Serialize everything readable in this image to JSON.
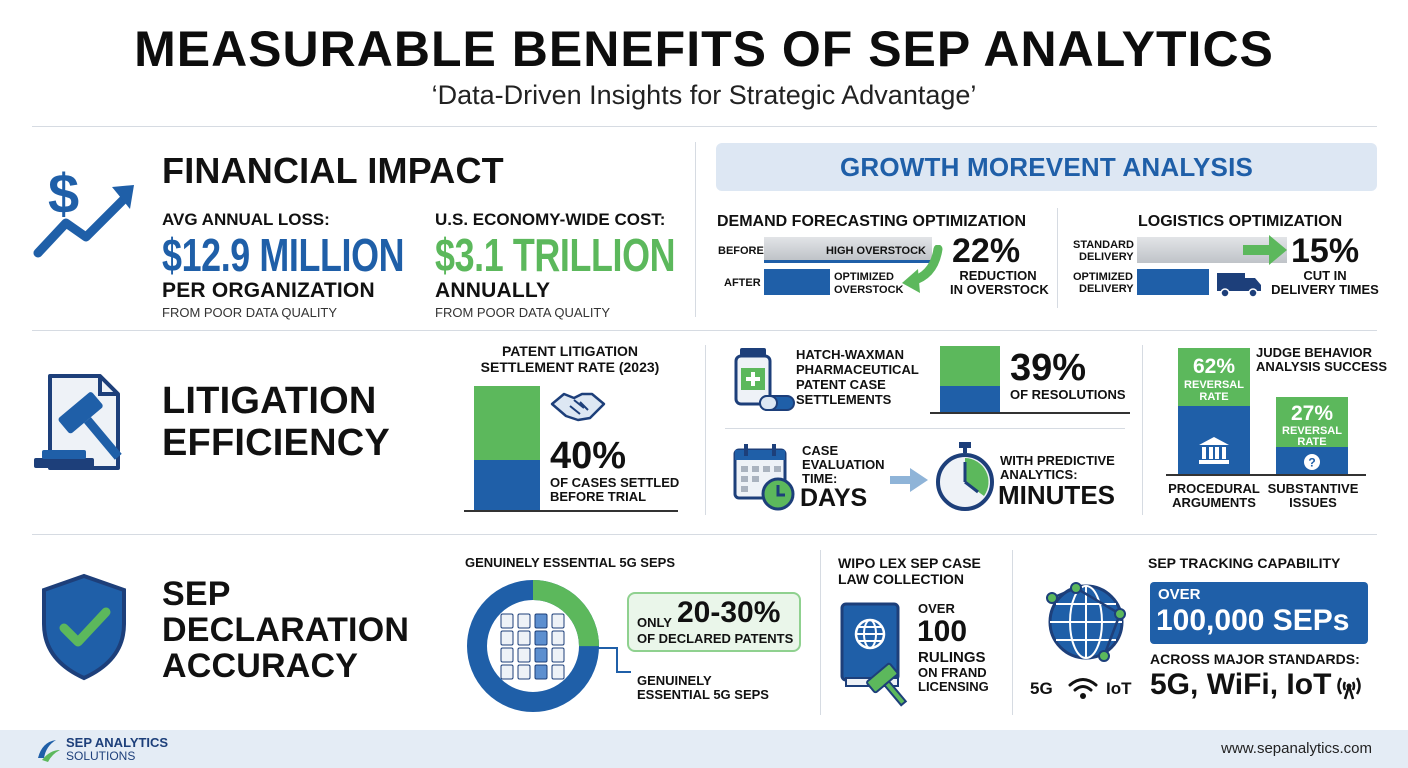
{
  "header": {
    "title": "MEASURABLE BENEFITS OF SEP ANALYTICS",
    "subtitle": "‘Data-Driven Insights for Strategic Advantage’"
  },
  "financial": {
    "heading": "FINANCIAL IMPACT",
    "loss_label": "AVG ANNUAL LOSS:",
    "loss_value": "$12.9 MILLION",
    "loss_sub": "PER ORGANIZATION",
    "loss_note": "FROM POOR DATA QUALITY",
    "cost_label": "U.S. ECONOMY-WIDE COST:",
    "cost_value": "$3.1 TRILLION",
    "cost_sub": "ANNUALLY",
    "cost_note": "FROM POOR DATA QUALITY"
  },
  "growth": {
    "banner": "GROWTH MOREVENT ANALYSIS",
    "demand": {
      "title": "DEMAND FORECASTING OPTIMIZATION",
      "before_label": "BEFORE",
      "before_bar": "HIGH OVERSTOCK",
      "after_label": "AFTER",
      "after_bar_1": "OPTIMIZED",
      "after_bar_2": "OVERSTOCK",
      "stat": "22%",
      "stat_line1": "REDUCTION",
      "stat_line2": "IN OVERSTOCK"
    },
    "logistics": {
      "title": "LOGISTICS OPTIMIZATION",
      "standard_1": "STANDARD",
      "standard_2": "DELIVERY",
      "optimized_1": "OPTIMIZED",
      "optimized_2": "DELIVERY",
      "stat": "15%",
      "stat_line1": "CUT IN",
      "stat_line2": "DELIVERY TIMES"
    }
  },
  "litigation": {
    "heading_1": "LITIGATION",
    "heading_2": "EFFICIENCY",
    "settlement": {
      "title_1": "PATENT LITIGATION",
      "title_2": "SETTLEMENT RATE (2023)",
      "value": "40%",
      "value_fraction": 0.4,
      "caption_1": "OF CASES SETTLED",
      "caption_2": "BEFORE TRIAL"
    },
    "hatch": {
      "line1": "HATCH-WAXMAN",
      "line2": "PHARMACEUTICAL",
      "line3": "PATENT CASE",
      "line4": "SETTLEMENTS",
      "value": "39%",
      "value_fraction": 0.39,
      "caption": "OF RESOLUTIONS"
    },
    "evaluation": {
      "label1": "CASE",
      "label2": "EVALUATION",
      "label3": "TIME:",
      "before_value": "DAYS",
      "with_1": "WITH PREDICTIVE",
      "with_2": "ANALYTICS:",
      "after_value": "MINUTES"
    },
    "judge": {
      "title_1": "JUDGE BEHAVIOR",
      "title_2": "ANALYSIS SUCCESS",
      "bar1_value": "62%",
      "bar1_caption_1": "REVERSAL",
      "bar1_caption_2": "RATE",
      "bar1_label_1": "PROCEDURAL",
      "bar1_label_2": "ARGUMENTS",
      "bar2_value": "27%",
      "bar2_caption_1": "REVERSAL",
      "bar2_caption_2": "RATE",
      "bar2_label_1": "SUBSTANTIVE",
      "bar2_label_2": "ISSUES"
    }
  },
  "sep": {
    "heading_1": "SEP",
    "heading_2": "DECLARATION",
    "heading_3": "ACCURACY",
    "donut": {
      "title": "GENUINELY ESSENTIAL 5G SEPs",
      "only": "ONLY",
      "range": "20-30%",
      "of_declared": "OF DECLARED PATENTS",
      "legend_1": "GENUINELY",
      "legend_2": "ESSENTIAL 5G SEPs",
      "essential_fraction": 0.25
    },
    "wipo": {
      "title_1": "WIPO LEX SEP CASE",
      "title_2": "LAW COLLECTION",
      "over": "OVER",
      "value": "100",
      "line1": "RULINGS",
      "line2": "ON FRAND",
      "line3": "LICENSING"
    },
    "tracking": {
      "title": "SEP TRACKING CAPABILITY",
      "over": "OVER",
      "value": "100,000 SEPs",
      "across": "ACROSS MAJOR STANDARDS:",
      "standards": "5G, WiFi, IoT",
      "icon_5g": "5G",
      "icon_iot": "IoT"
    }
  },
  "footer": {
    "brand_1": "SEP ANALYTICS",
    "brand_2": "SOLUTIONS",
    "url": "www.sepanalytics.com"
  },
  "colors": {
    "blue": "#1f5fa8",
    "navy": "#1d3f7a",
    "green": "#5cb85c",
    "light_green": "#8fd18f",
    "gray": "#cfd3d8",
    "banner_bg": "#dde7f3",
    "footer_bg": "#e4ecf5"
  }
}
